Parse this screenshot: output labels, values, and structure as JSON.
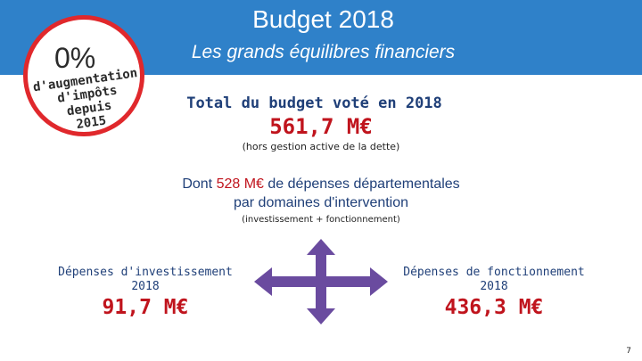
{
  "header": {
    "title": "Budget 2018",
    "subtitle": "Les grands équilibres financiers"
  },
  "badge": {
    "percent": "0%",
    "line1": "d'augmentation",
    "line2": "d'impôts depuis",
    "line3": "2015"
  },
  "total": {
    "label": "Total du budget voté en 2018",
    "amount": "561,7 M€",
    "note": "(hors gestion active de la dette)"
  },
  "departmental": {
    "prefix": "Dont ",
    "amount": "528 M€",
    "suffix": " de dépenses départementales",
    "line2": "par domaines d'intervention",
    "note": "(investissement + fonctionnement)"
  },
  "investment": {
    "label_line1": "Dépenses d'investissement",
    "label_line2": "2018",
    "amount": "91,7 M€"
  },
  "operating": {
    "label_line1": "Dépenses de fonctionnement",
    "label_line2": "2018",
    "amount": "436,3 M€"
  },
  "page_number": "7",
  "colors": {
    "header_blue": "#2f81c9",
    "navy_text": "#1f3f78",
    "red_accent": "#c0141d",
    "badge_ring": "#e0282c",
    "arrow_fill": "#6a4b9f"
  }
}
